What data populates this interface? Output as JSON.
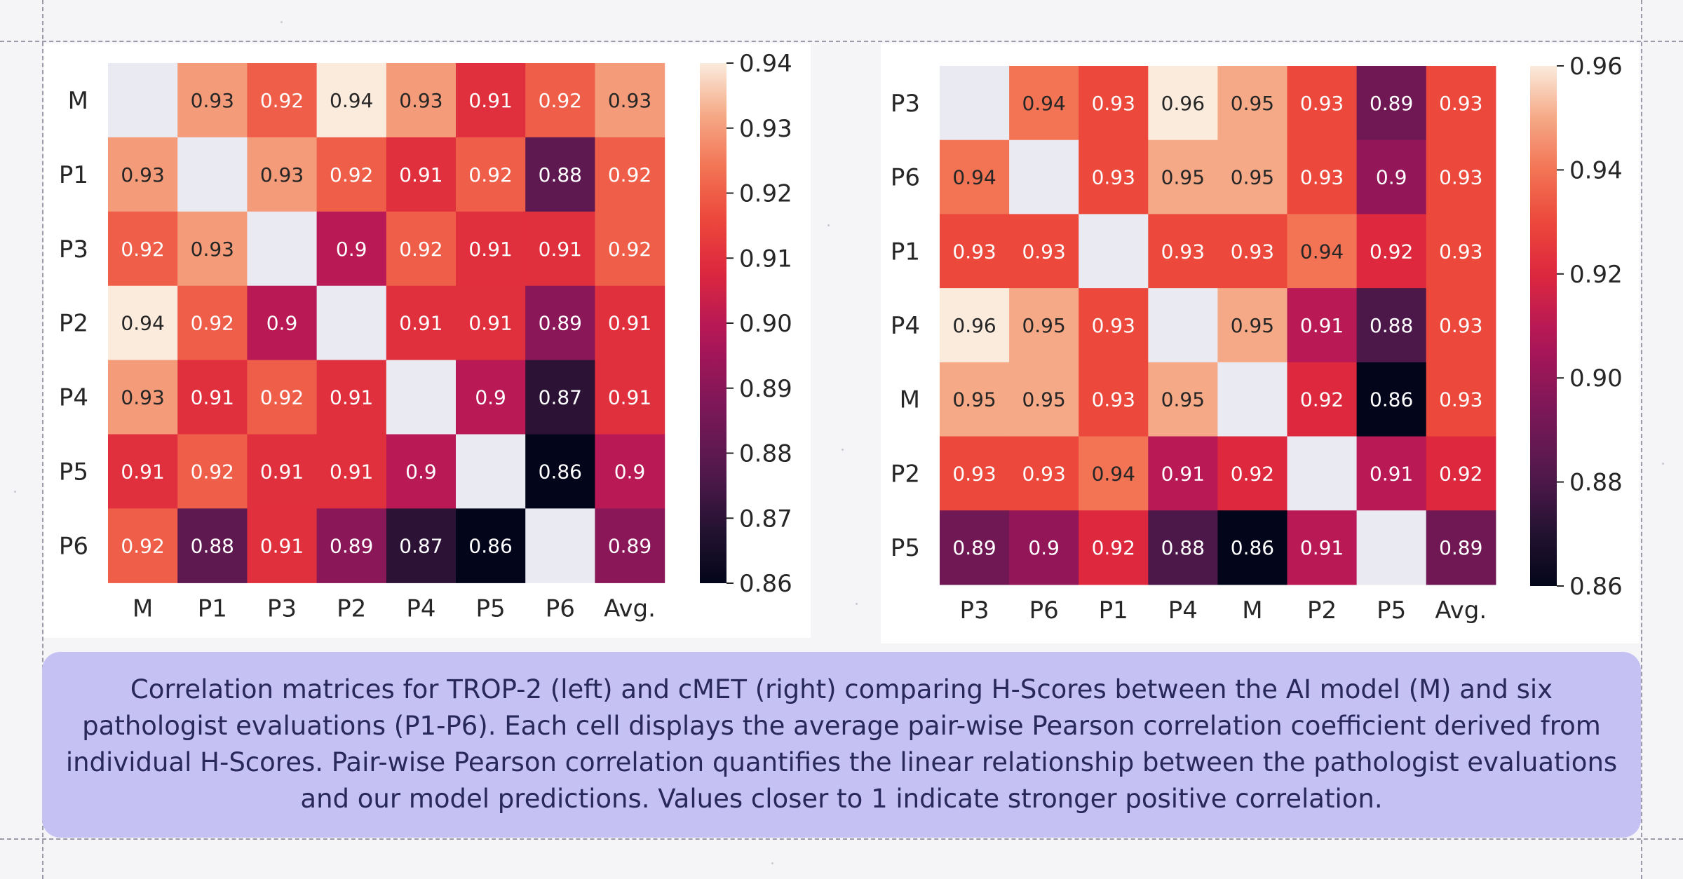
{
  "caption": "Correlation matrices for TROP-2 (left) and cMET (right) comparing H-Scores between the AI model (M) and six pathologist evaluations (P1-P6). Each cell displays the average pair-wise Pearson correlation coefficient derived from individual H-Scores. Pair-wise Pearson correlation quantifies the linear relationship between the pathologist evaluations and our model predictions. Values closer to 1 indicate stronger positive correlation.",
  "chart_data": [
    {
      "type": "heatmap",
      "title": "",
      "rows": [
        "M",
        "P1",
        "P3",
        "P2",
        "P4",
        "P5",
        "P6"
      ],
      "columns": [
        "M",
        "P1",
        "P3",
        "P2",
        "P4",
        "P5",
        "P6",
        "Avg."
      ],
      "values": [
        [
          null,
          0.93,
          0.92,
          0.94,
          0.93,
          0.91,
          0.92,
          0.93
        ],
        [
          0.93,
          null,
          0.93,
          0.92,
          0.91,
          0.92,
          0.88,
          0.92
        ],
        [
          0.92,
          0.93,
          null,
          0.9,
          0.92,
          0.91,
          0.91,
          0.92
        ],
        [
          0.94,
          0.92,
          0.9,
          null,
          0.91,
          0.91,
          0.89,
          0.91
        ],
        [
          0.93,
          0.91,
          0.92,
          0.91,
          null,
          0.9,
          0.87,
          0.91
        ],
        [
          0.91,
          0.92,
          0.91,
          0.91,
          0.9,
          null,
          0.86,
          0.9
        ],
        [
          0.92,
          0.88,
          0.91,
          0.89,
          0.87,
          0.86,
          null,
          0.89
        ]
      ],
      "colorbar": {
        "range": [
          0.86,
          0.94
        ],
        "ticks": [
          "0.86",
          "0.87",
          "0.88",
          "0.89",
          "0.90",
          "0.91",
          "0.92",
          "0.93",
          "0.94"
        ]
      },
      "colormap": "rocket",
      "empty_cell_color": "#eaeaf2"
    },
    {
      "type": "heatmap",
      "title": "",
      "rows": [
        "P3",
        "P6",
        "P1",
        "P4",
        "M",
        "P2",
        "P5"
      ],
      "columns": [
        "P3",
        "P6",
        "P1",
        "P4",
        "M",
        "P2",
        "P5",
        "Avg."
      ],
      "values": [
        [
          null,
          0.94,
          0.93,
          0.96,
          0.95,
          0.93,
          0.89,
          0.93
        ],
        [
          0.94,
          null,
          0.93,
          0.95,
          0.95,
          0.93,
          0.9,
          0.93
        ],
        [
          0.93,
          0.93,
          null,
          0.93,
          0.93,
          0.94,
          0.92,
          0.93
        ],
        [
          0.96,
          0.95,
          0.93,
          null,
          0.95,
          0.91,
          0.88,
          0.93
        ],
        [
          0.95,
          0.95,
          0.93,
          0.95,
          null,
          0.92,
          0.86,
          0.93
        ],
        [
          0.93,
          0.93,
          0.94,
          0.91,
          0.92,
          null,
          0.91,
          0.92
        ],
        [
          0.89,
          0.9,
          0.92,
          0.88,
          0.86,
          0.91,
          null,
          0.89
        ]
      ],
      "colorbar": {
        "range": [
          0.86,
          0.96
        ],
        "ticks": [
          "0.86",
          "0.88",
          "0.90",
          "0.92",
          "0.94",
          "0.96"
        ]
      },
      "colormap": "rocket",
      "empty_cell_color": "#eaeaf2"
    }
  ]
}
